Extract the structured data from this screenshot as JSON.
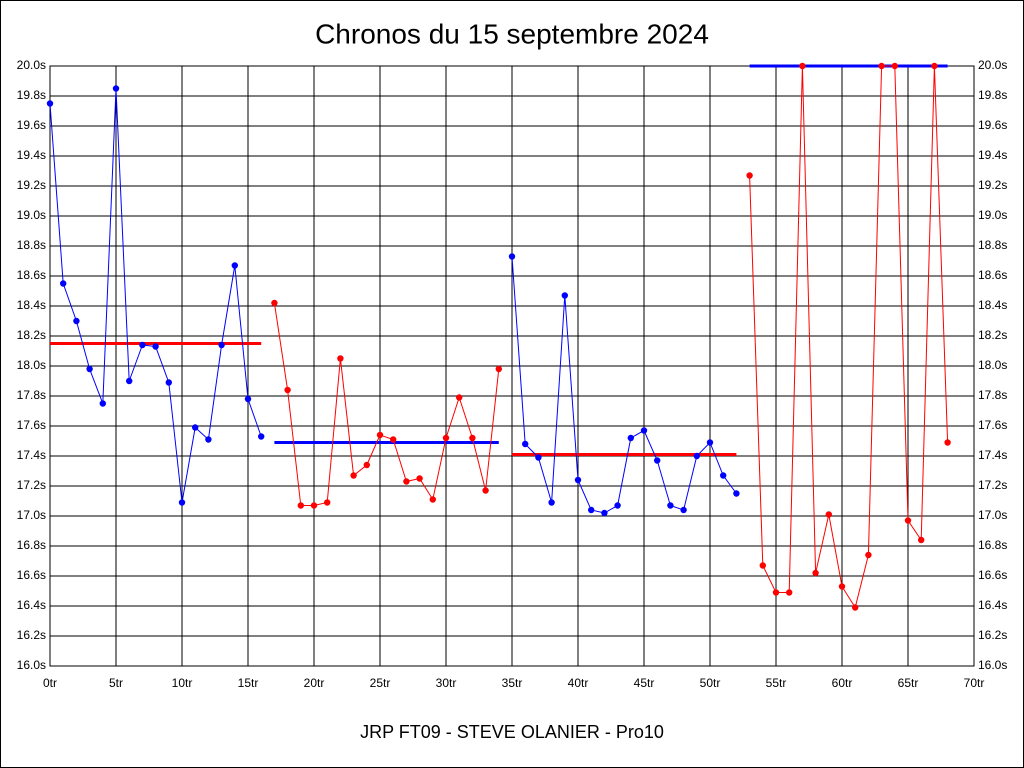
{
  "chart_data": {
    "type": "line",
    "title": "Chronos du 15 septembre 2024",
    "xlabel": "JRP FT09 - STEVE OLANIER - Pro10",
    "xlim": [
      0,
      70
    ],
    "xticks": [
      {
        "value": 0,
        "label": "0tr"
      },
      {
        "value": 5,
        "label": "5tr"
      },
      {
        "value": 10,
        "label": "10tr"
      },
      {
        "value": 15,
        "label": "15tr"
      },
      {
        "value": 20,
        "label": "20tr"
      },
      {
        "value": 25,
        "label": "25tr"
      },
      {
        "value": 30,
        "label": "30tr"
      },
      {
        "value": 35,
        "label": "35tr"
      },
      {
        "value": 40,
        "label": "40tr"
      },
      {
        "value": 45,
        "label": "45tr"
      },
      {
        "value": 50,
        "label": "50tr"
      },
      {
        "value": 55,
        "label": "55tr"
      },
      {
        "value": 60,
        "label": "60tr"
      },
      {
        "value": 65,
        "label": "65tr"
      },
      {
        "value": 70,
        "label": "70tr"
      }
    ],
    "ylim": [
      16,
      20
    ],
    "yticks": [
      {
        "value": 16,
        "label": "16.0s"
      },
      {
        "value": 16.2,
        "label": "16.2s"
      },
      {
        "value": 16.4,
        "label": "16.4s"
      },
      {
        "value": 16.6,
        "label": "16.6s"
      },
      {
        "value": 16.8,
        "label": "16.8s"
      },
      {
        "value": 17,
        "label": "17.0s"
      },
      {
        "value": 17.2,
        "label": "17.2s"
      },
      {
        "value": 17.4,
        "label": "17.4s"
      },
      {
        "value": 17.6,
        "label": "17.6s"
      },
      {
        "value": 17.8,
        "label": "17.8s"
      },
      {
        "value": 18,
        "label": "18.0s"
      },
      {
        "value": 18.2,
        "label": "18.2s"
      },
      {
        "value": 18.4,
        "label": "18.4s"
      },
      {
        "value": 18.6,
        "label": "18.6s"
      },
      {
        "value": 18.8,
        "label": "18.8s"
      },
      {
        "value": 19,
        "label": "19.0s"
      },
      {
        "value": 19.2,
        "label": "19.2s"
      },
      {
        "value": 19.4,
        "label": "19.4s"
      },
      {
        "value": 19.6,
        "label": "19.6s"
      },
      {
        "value": 19.8,
        "label": "19.8s"
      },
      {
        "value": 20,
        "label": "20.0s"
      }
    ],
    "grid": true,
    "series": [
      {
        "color": "#0000ff",
        "x": [
          0,
          1,
          2,
          3,
          4,
          5,
          6,
          7,
          8,
          9,
          10,
          11,
          12,
          13,
          14,
          15,
          16
        ],
        "values": [
          19.75,
          18.55,
          18.3,
          17.98,
          17.75,
          19.85,
          17.9,
          18.14,
          18.13,
          17.89,
          17.09,
          17.59,
          17.51,
          18.14,
          18.67,
          17.78,
          17.53
        ]
      },
      {
        "color": "#ff0000",
        "x": [
          17,
          18,
          19,
          20,
          21,
          22,
          23,
          24,
          25,
          26,
          27,
          28,
          29,
          30,
          31,
          32,
          33,
          34
        ],
        "values": [
          18.42,
          17.84,
          17.07,
          17.07,
          17.09,
          18.05,
          17.27,
          17.34,
          17.54,
          17.51,
          17.23,
          17.25,
          17.11,
          17.52,
          17.79,
          17.52,
          17.17,
          17.98
        ]
      },
      {
        "color": "#0000ff",
        "x": [
          35,
          36,
          37,
          38,
          39,
          40,
          41,
          42,
          43,
          44,
          45,
          46,
          47,
          48,
          49,
          50,
          51,
          52
        ],
        "values": [
          18.73,
          17.48,
          17.39,
          17.09,
          18.47,
          17.24,
          17.04,
          17.02,
          17.07,
          17.52,
          17.57,
          17.37,
          17.07,
          17.04,
          17.4,
          17.49,
          17.27,
          17.15
        ]
      },
      {
        "color": "#ff0000",
        "x": [
          53,
          54,
          55,
          56,
          57,
          58,
          59,
          60,
          61,
          62,
          63,
          64,
          65,
          66,
          67,
          68
        ],
        "values": [
          19.27,
          16.67,
          16.49,
          16.49,
          20,
          16.62,
          17.01,
          16.53,
          16.39,
          16.74,
          20,
          20,
          16.97,
          16.84,
          20,
          17.49
        ]
      }
    ],
    "mean_lines": [
      {
        "color": "#ff0000",
        "x": [
          0,
          16
        ],
        "value": 18.15
      },
      {
        "color": "#0000ff",
        "x": [
          17,
          34
        ],
        "value": 17.49
      },
      {
        "color": "#ff0000",
        "x": [
          35,
          52
        ],
        "value": 17.41
      },
      {
        "color": "#0000ff",
        "x": [
          53,
          68
        ],
        "value": 20
      }
    ]
  }
}
